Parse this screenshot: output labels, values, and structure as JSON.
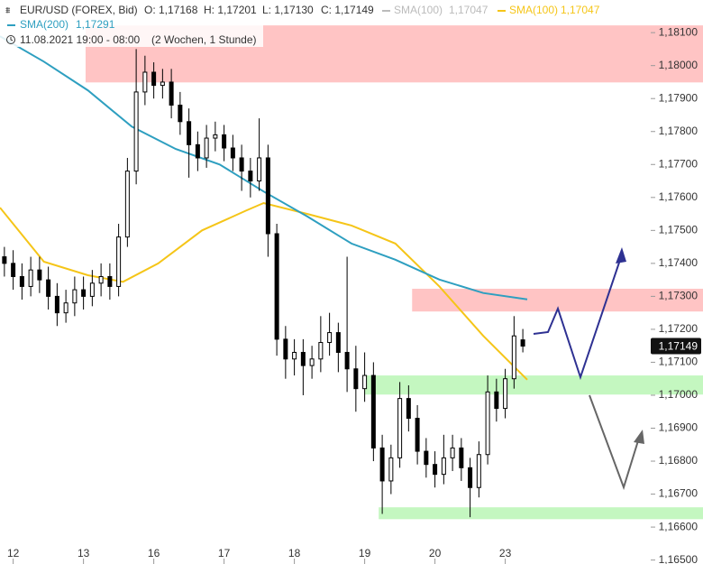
{
  "chart_data": {
    "type": "candlestick",
    "title": "EUR/USD (FOREX, Bid)",
    "ohlc_labels": [
      "O: 1,17168",
      "H: 1,17201",
      "L: 1,17130",
      "C: 1,17149"
    ],
    "inactive_indicator": {
      "name": "SMA(100)",
      "value_label": "1,17047"
    },
    "period": "11.08.2021 19:00 - 08:00",
    "range_label": "(2 Wochen, 1 Stunde)",
    "xlim": [
      0,
      73.85
    ],
    "ylim": [
      1.16488,
      1.18199
    ],
    "xticks": [
      {
        "value": 1.5,
        "label": "12"
      },
      {
        "value": 9.5,
        "label": "13"
      },
      {
        "value": 17.5,
        "label": "16"
      },
      {
        "value": 25.5,
        "label": "17"
      },
      {
        "value": 33.5,
        "label": "18"
      },
      {
        "value": 41.5,
        "label": "19"
      },
      {
        "value": 49.5,
        "label": "20"
      },
      {
        "value": 57.5,
        "label": "23"
      }
    ],
    "yticks": [
      {
        "value": 1.181,
        "label": "1,18100"
      },
      {
        "value": 1.18,
        "label": "1,18000"
      },
      {
        "value": 1.179,
        "label": "1,17900"
      },
      {
        "value": 1.178,
        "label": "1,17800"
      },
      {
        "value": 1.177,
        "label": "1,17700"
      },
      {
        "value": 1.176,
        "label": "1,17600"
      },
      {
        "value": 1.175,
        "label": "1,17500"
      },
      {
        "value": 1.174,
        "label": "1,17400"
      },
      {
        "value": 1.173,
        "label": "1,17300"
      },
      {
        "value": 1.172,
        "label": "1,17200"
      },
      {
        "value": 1.171,
        "label": "1,17100"
      },
      {
        "value": 1.17,
        "label": "1,17000"
      },
      {
        "value": 1.169,
        "label": "1,16900"
      },
      {
        "value": 1.168,
        "label": "1,16800"
      },
      {
        "value": 1.167,
        "label": "1,16700"
      },
      {
        "value": 1.166,
        "label": "1,16600"
      },
      {
        "value": 1.165,
        "label": "1,16500"
      }
    ],
    "x": [
      0.5,
      1.5,
      2.5,
      3.5,
      4.5,
      5.5,
      6.5,
      7.5,
      8.5,
      9.5,
      10.5,
      11.5,
      12.5,
      13.5,
      14.5,
      15.5,
      16.5,
      17.5,
      18.5,
      19.5,
      20.5,
      21.5,
      22.5,
      23.5,
      24.5,
      25.5,
      26.5,
      27.5,
      28.5,
      29.5,
      30.5,
      31.5,
      32.5,
      33.5,
      34.5,
      35.5,
      36.5,
      37.5,
      38.5,
      39.5,
      40.5,
      41.5,
      42.5,
      43.5,
      44.5,
      45.5,
      46.5,
      47.5,
      48.5,
      49.5,
      50.5,
      51.5,
      52.5,
      53.5,
      54.5,
      55.5,
      56.5,
      57.5,
      58.5,
      59.5
    ],
    "open": [
      1.1742,
      1.174,
      1.1736,
      1.1733,
      1.1738,
      1.1735,
      1.173,
      1.1725,
      1.1728,
      1.1732,
      1.173,
      1.1734,
      1.1736,
      1.1733,
      1.1748,
      1.1768,
      1.1792,
      1.1798,
      1.1794,
      1.1795,
      1.1788,
      1.1783,
      1.1776,
      1.1772,
      1.1778,
      1.1779,
      1.1775,
      1.1772,
      1.1768,
      1.1765,
      1.1772,
      1.1749,
      1.1717,
      1.1711,
      1.1713,
      1.1709,
      1.1711,
      1.1716,
      1.1719,
      1.1713,
      1.1708,
      1.1702,
      1.1706,
      1.1684,
      1.1674,
      1.1681,
      1.1699,
      1.1693,
      1.1683,
      1.1679,
      1.1676,
      1.1681,
      1.1684,
      1.1678,
      1.1672,
      1.1682,
      1.1701,
      1.1696,
      1.1705,
      1.17168
    ],
    "high": [
      1.1745,
      1.1744,
      1.174,
      1.1742,
      1.1742,
      1.1739,
      1.1734,
      1.1732,
      1.1736,
      1.1736,
      1.1738,
      1.174,
      1.174,
      1.1752,
      1.1772,
      1.1805,
      1.1803,
      1.1801,
      1.1799,
      1.1799,
      1.1792,
      1.1787,
      1.178,
      1.1782,
      1.1783,
      1.1782,
      1.1779,
      1.1776,
      1.1772,
      1.1784,
      1.1776,
      1.1752,
      1.1721,
      1.1717,
      1.1717,
      1.1715,
      1.1724,
      1.1725,
      1.1722,
      1.1742,
      1.1715,
      1.1713,
      1.171,
      1.1688,
      1.1685,
      1.1704,
      1.1703,
      1.1697,
      1.1687,
      1.1683,
      1.1688,
      1.1688,
      1.1687,
      1.1681,
      1.1686,
      1.1706,
      1.1705,
      1.1708,
      1.1724,
      1.17201
    ],
    "low": [
      1.1736,
      1.1732,
      1.1729,
      1.173,
      1.1731,
      1.1726,
      1.1721,
      1.1722,
      1.1724,
      1.1726,
      1.1727,
      1.173,
      1.1729,
      1.173,
      1.1745,
      1.1764,
      1.1788,
      1.179,
      1.179,
      1.1784,
      1.1779,
      1.1766,
      1.1768,
      1.1769,
      1.1774,
      1.1771,
      1.1768,
      1.1762,
      1.176,
      1.1762,
      1.1742,
      1.1712,
      1.1705,
      1.1706,
      1.17,
      1.1705,
      1.1707,
      1.1712,
      1.1707,
      1.1701,
      1.1695,
      1.1698,
      1.168,
      1.1664,
      1.167,
      1.1678,
      1.1689,
      1.1679,
      1.1675,
      1.1672,
      1.1673,
      1.1677,
      1.1674,
      1.1663,
      1.1669,
      1.1679,
      1.1692,
      1.1693,
      1.1702,
      1.1713
    ],
    "close": [
      1.174,
      1.1736,
      1.1733,
      1.1738,
      1.1735,
      1.173,
      1.1725,
      1.1728,
      1.1732,
      1.173,
      1.1734,
      1.1736,
      1.1733,
      1.1748,
      1.1768,
      1.1792,
      1.1798,
      1.1794,
      1.1795,
      1.1788,
      1.1783,
      1.1776,
      1.1772,
      1.1778,
      1.1779,
      1.1775,
      1.1772,
      1.1768,
      1.1765,
      1.1772,
      1.1749,
      1.1717,
      1.1711,
      1.1713,
      1.1709,
      1.1711,
      1.1716,
      1.1719,
      1.1713,
      1.1708,
      1.1702,
      1.1706,
      1.1684,
      1.1674,
      1.1681,
      1.1699,
      1.1693,
      1.1683,
      1.1679,
      1.1676,
      1.1681,
      1.1684,
      1.1678,
      1.1672,
      1.1682,
      1.1701,
      1.1696,
      1.1705,
      1.1718,
      1.17149
    ],
    "last_label": "1,17149",
    "candle_color": "#000000",
    "series": [
      {
        "name": "SMA(100)",
        "color": "#f5c518",
        "value_label": "1,17047",
        "x": [
          0,
          5,
          10,
          14,
          18,
          23,
          28,
          30,
          35,
          40,
          45,
          50,
          55,
          60
        ],
        "values": [
          1.17569,
          1.17405,
          1.17364,
          1.17344,
          1.174,
          1.175,
          1.1756,
          1.17583,
          1.1755,
          1.17515,
          1.1746,
          1.1733,
          1.1718,
          1.17047
        ]
      },
      {
        "name": "SMA(200)",
        "color": "#2e9fc0",
        "value_label": "1,17291",
        "x": [
          0,
          5,
          10,
          15,
          20,
          25,
          30,
          35,
          40,
          45,
          50,
          55,
          60
        ],
        "values": [
          1.18089,
          1.18012,
          1.17925,
          1.17815,
          1.17747,
          1.177,
          1.17618,
          1.17542,
          1.1746,
          1.17411,
          1.17351,
          1.1731,
          1.17291
        ]
      }
    ],
    "zones": [
      {
        "x_start": 9.74,
        "top": 1.18122,
        "bottom": 1.17949,
        "color": "#ffc4c4"
      },
      {
        "x_start": 46.9,
        "top": 1.17323,
        "bottom": 1.17254,
        "color": "#ffc4c4"
      },
      {
        "x_start": 41.5,
        "top": 1.1706,
        "bottom": 1.17002,
        "color": "#c4f7c0"
      },
      {
        "x_start": 43.1,
        "top": 1.1666,
        "bottom": 1.16624,
        "color": "#c4f7c0"
      }
    ]
  }
}
